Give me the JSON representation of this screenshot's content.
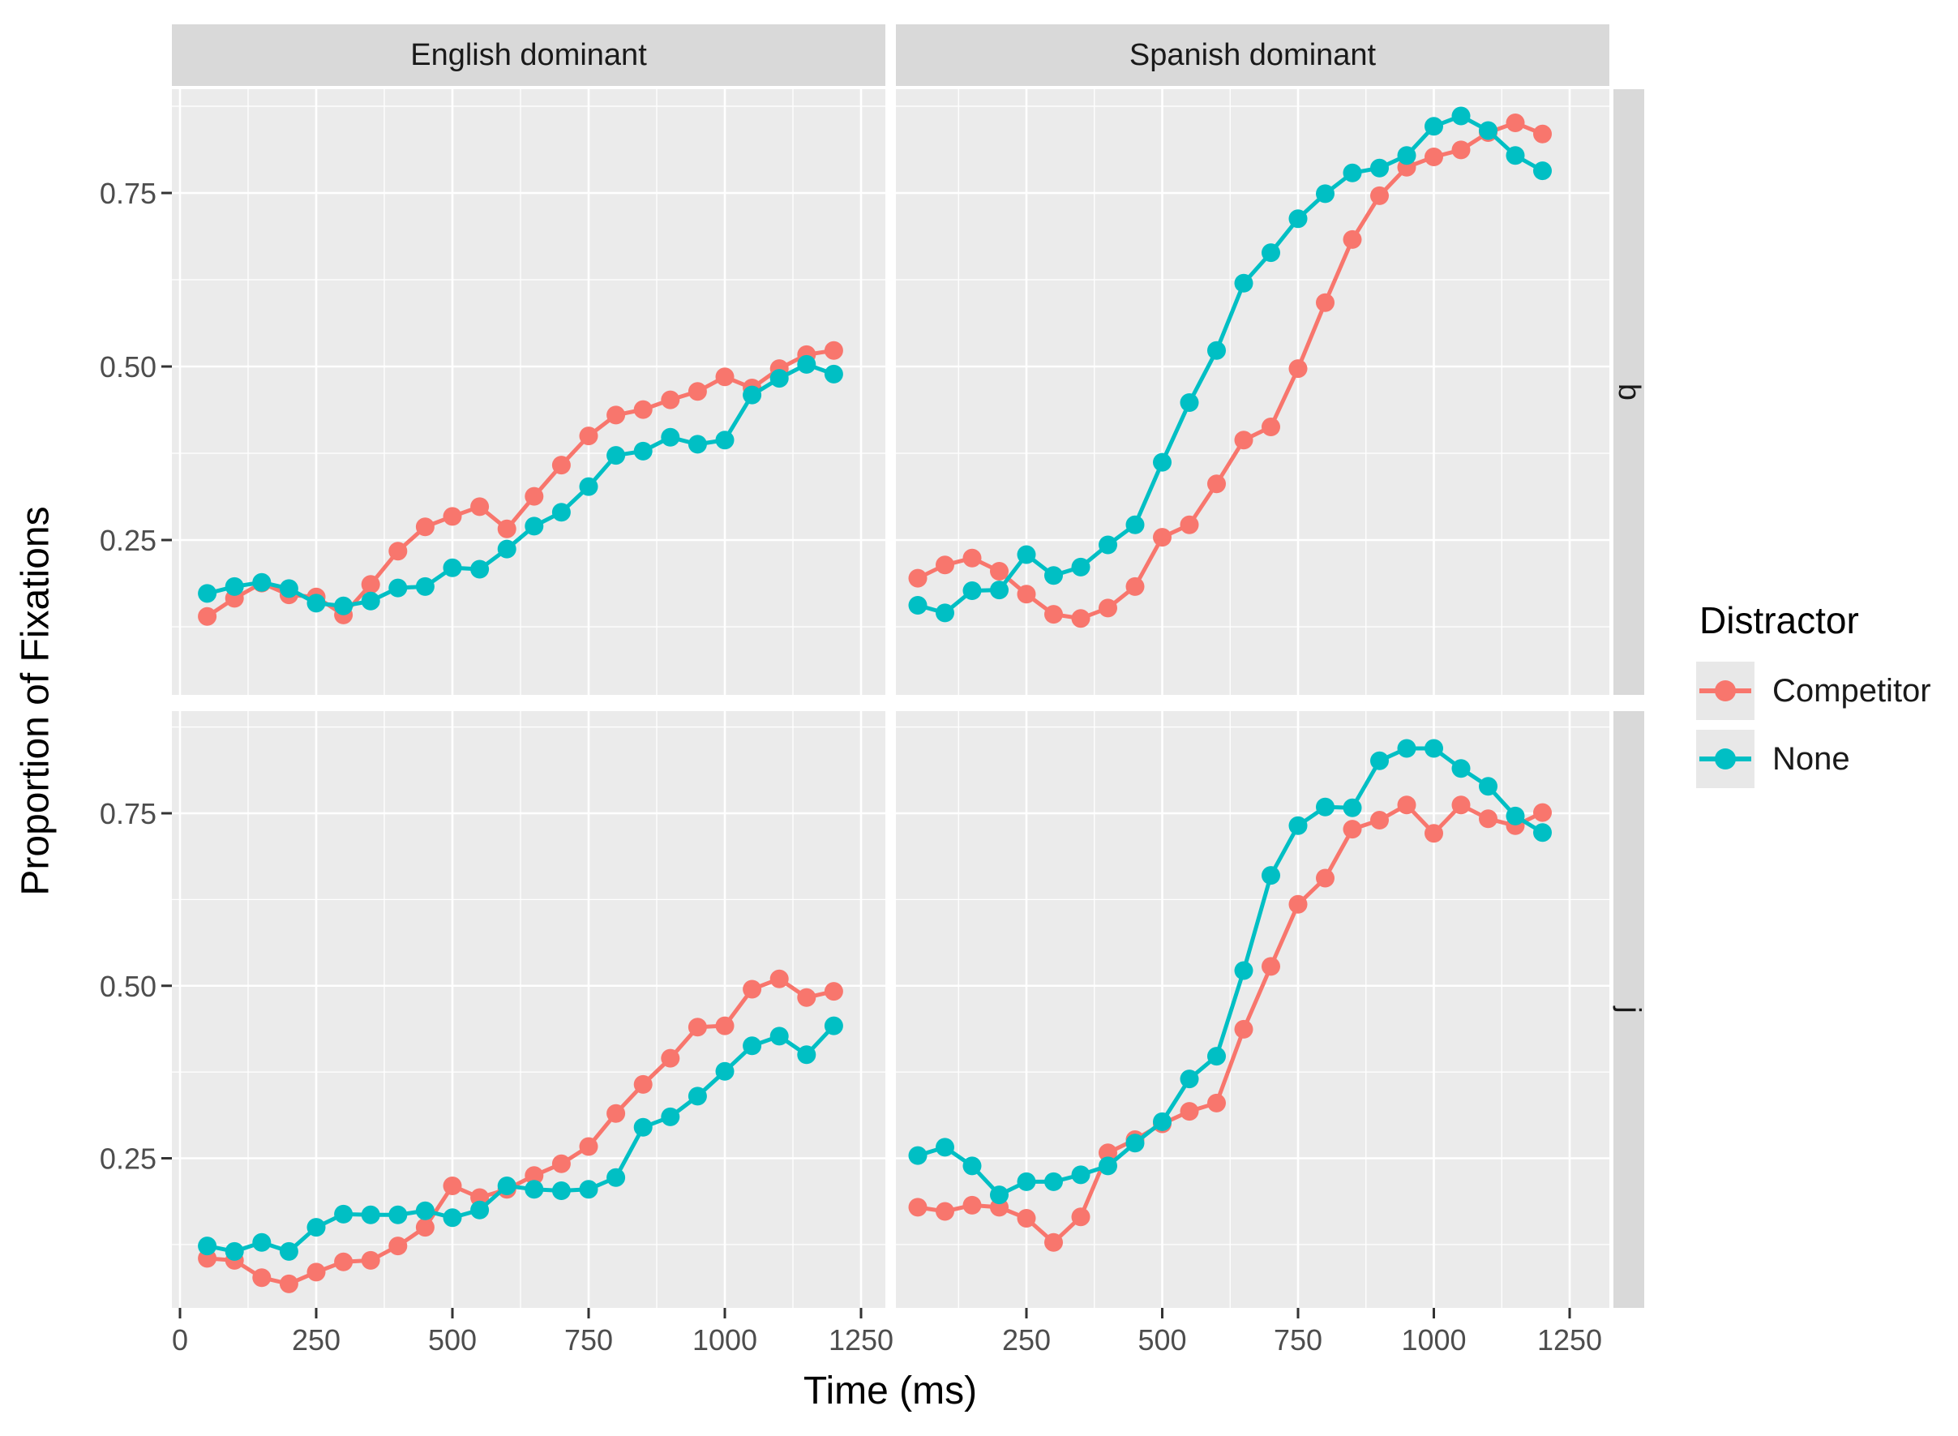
{
  "figure_type": "faceted-line-chart",
  "facets": {
    "cols": [
      {
        "label": "English dominant"
      },
      {
        "label": "Spanish dominant"
      }
    ],
    "rows": [
      {
        "label": "b"
      },
      {
        "label": "j"
      }
    ]
  },
  "axes": {
    "x_title": "Time (ms)",
    "y_title": "Proportion of Fixations",
    "y_ticks": [
      {
        "label": "0.75",
        "value": 0.75
      },
      {
        "label": "0.50",
        "value": 0.5
      },
      {
        "label": "0.25",
        "value": 0.25
      }
    ],
    "x_ticks_left": [
      {
        "label": "0",
        "value": 0
      },
      {
        "label": "250",
        "value": 250
      },
      {
        "label": "500",
        "value": 500
      },
      {
        "label": "750",
        "value": 750
      },
      {
        "label": "1000",
        "value": 1000
      },
      {
        "label": "1250",
        "value": 1250
      }
    ],
    "x_ticks_right": [
      {
        "label": "250",
        "value": 250
      },
      {
        "label": "500",
        "value": 500
      },
      {
        "label": "750",
        "value": 750
      },
      {
        "label": "1000",
        "value": 1000
      },
      {
        "label": "1250",
        "value": 1250
      }
    ]
  },
  "legend": {
    "title": "Distractor",
    "items": [
      {
        "label": "Competitor",
        "color": "#F8766D"
      },
      {
        "label": "None",
        "color": "#00BFC4"
      }
    ]
  },
  "colors": {
    "competitor": "#F8766D",
    "none": "#00BFC4",
    "panel_bg": "#EBEBEB",
    "strip_bg": "#D9D9D9",
    "grid": "#FFFFFF",
    "tick_text": "#4d4d4d",
    "strip_text": "#1a1a1a"
  },
  "chart_data": [
    {
      "type": "line",
      "facet_col": "English dominant",
      "facet_row": "b",
      "xlabel": "Time (ms)",
      "ylabel": "Proportion of Fixations",
      "xlim": [
        0,
        1250
      ],
      "ylim": [
        0,
        0.9
      ],
      "grid": true,
      "legend_position": "right",
      "x": [
        50,
        100,
        150,
        200,
        250,
        300,
        350,
        400,
        450,
        500,
        550,
        600,
        650,
        700,
        750,
        800,
        850,
        900,
        950,
        1000,
        1050,
        1100,
        1150,
        1200
      ],
      "series": [
        {
          "name": "Competitor",
          "values": [
            0.14,
            0.166,
            0.188,
            0.171,
            0.168,
            0.142,
            0.186,
            0.234,
            0.269,
            0.284,
            0.298,
            0.266,
            0.313,
            0.358,
            0.4,
            0.43,
            0.438,
            0.452,
            0.464,
            0.485,
            0.469,
            0.497,
            0.517,
            0.523
          ]
        },
        {
          "name": "None",
          "values": [
            0.173,
            0.183,
            0.189,
            0.18,
            0.159,
            0.155,
            0.162,
            0.181,
            0.183,
            0.21,
            0.208,
            0.237,
            0.27,
            0.29,
            0.327,
            0.372,
            0.378,
            0.398,
            0.388,
            0.394,
            0.459,
            0.483,
            0.503,
            0.489
          ]
        }
      ]
    },
    {
      "type": "line",
      "facet_col": "Spanish dominant",
      "facet_row": "b",
      "xlabel": "Time (ms)",
      "ylabel": "Proportion of Fixations",
      "xlim": [
        0,
        1250
      ],
      "ylim": [
        0,
        0.9
      ],
      "grid": true,
      "legend_position": "right",
      "x": [
        50,
        100,
        150,
        200,
        250,
        300,
        350,
        400,
        450,
        500,
        550,
        600,
        650,
        700,
        750,
        800,
        850,
        900,
        950,
        1000,
        1050,
        1100,
        1150,
        1200
      ],
      "series": [
        {
          "name": "Competitor",
          "values": [
            0.195,
            0.214,
            0.224,
            0.205,
            0.172,
            0.143,
            0.137,
            0.152,
            0.183,
            0.254,
            0.272,
            0.331,
            0.394,
            0.413,
            0.497,
            0.592,
            0.683,
            0.746,
            0.787,
            0.802,
            0.812,
            0.837,
            0.851,
            0.835
          ]
        },
        {
          "name": "None",
          "values": [
            0.156,
            0.145,
            0.177,
            0.178,
            0.229,
            0.199,
            0.211,
            0.243,
            0.272,
            0.362,
            0.448,
            0.523,
            0.62,
            0.664,
            0.713,
            0.749,
            0.779,
            0.786,
            0.804,
            0.846,
            0.861,
            0.84,
            0.804,
            0.782
          ]
        }
      ]
    },
    {
      "type": "line",
      "facet_col": "English dominant",
      "facet_row": "j",
      "xlabel": "Time (ms)",
      "ylabel": "Proportion of Fixations",
      "xlim": [
        0,
        1250
      ],
      "ylim": [
        0,
        0.9
      ],
      "grid": true,
      "legend_position": "right",
      "x": [
        50,
        100,
        150,
        200,
        250,
        300,
        350,
        400,
        450,
        500,
        550,
        600,
        650,
        700,
        750,
        800,
        850,
        900,
        950,
        1000,
        1050,
        1100,
        1150,
        1200
      ],
      "series": [
        {
          "name": "Competitor",
          "values": [
            0.105,
            0.102,
            0.077,
            0.068,
            0.085,
            0.1,
            0.102,
            0.123,
            0.15,
            0.21,
            0.193,
            0.205,
            0.225,
            0.242,
            0.267,
            0.315,
            0.357,
            0.395,
            0.44,
            0.442,
            0.495,
            0.51,
            0.483,
            0.492
          ]
        },
        {
          "name": "None",
          "values": [
            0.123,
            0.115,
            0.128,
            0.115,
            0.15,
            0.169,
            0.168,
            0.168,
            0.174,
            0.164,
            0.175,
            0.21,
            0.205,
            0.203,
            0.205,
            0.222,
            0.295,
            0.31,
            0.34,
            0.376,
            0.413,
            0.427,
            0.4,
            0.442
          ]
        }
      ]
    },
    {
      "type": "line",
      "facet_col": "Spanish dominant",
      "facet_row": "j",
      "xlabel": "Time (ms)",
      "ylabel": "Proportion of Fixations",
      "xlim": [
        0,
        1250
      ],
      "ylim": [
        0,
        0.9
      ],
      "grid": true,
      "legend_position": "right",
      "x": [
        50,
        100,
        150,
        200,
        250,
        300,
        350,
        400,
        450,
        500,
        550,
        600,
        650,
        700,
        750,
        800,
        850,
        900,
        950,
        1000,
        1050,
        1100,
        1150,
        1200
      ],
      "series": [
        {
          "name": "Competitor",
          "values": [
            0.179,
            0.173,
            0.182,
            0.179,
            0.163,
            0.128,
            0.165,
            0.258,
            0.277,
            0.3,
            0.318,
            0.33,
            0.437,
            0.528,
            0.618,
            0.656,
            0.727,
            0.74,
            0.762,
            0.721,
            0.762,
            0.742,
            0.732,
            0.751
          ]
        },
        {
          "name": "None",
          "values": [
            0.254,
            0.266,
            0.239,
            0.197,
            0.216,
            0.216,
            0.226,
            0.239,
            0.272,
            0.303,
            0.365,
            0.398,
            0.522,
            0.66,
            0.732,
            0.759,
            0.758,
            0.826,
            0.844,
            0.844,
            0.815,
            0.789,
            0.746,
            0.722
          ]
        }
      ]
    }
  ]
}
